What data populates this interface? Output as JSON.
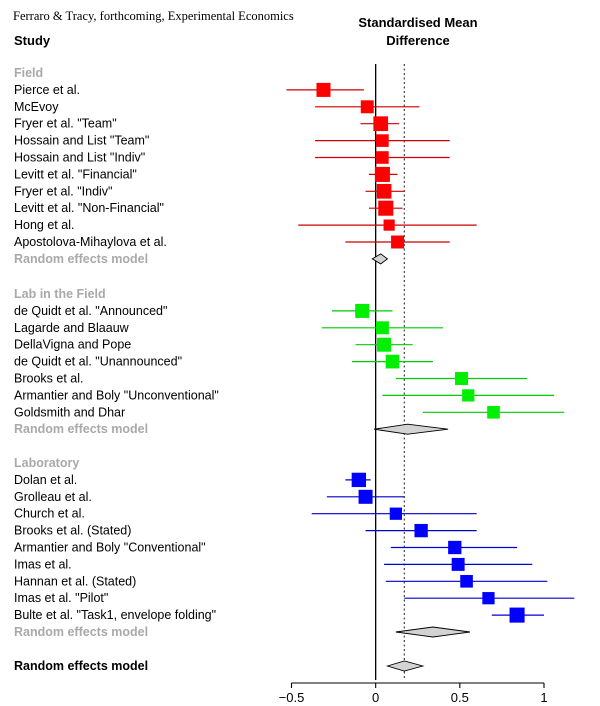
{
  "source_note": "Ferraro & Tracy, forthcoming, Experimental Economics",
  "column_headers": {
    "study": "Study",
    "effect_line1": "Standardised Mean",
    "effect_line2": "Difference"
  },
  "overall_label": "Random effects model",
  "chart_data": {
    "type": "forest",
    "xlim": [
      -0.5,
      1
    ],
    "xticks": [
      "−0.5",
      "0",
      "0.5",
      "1"
    ],
    "xtick_values": [
      -0.5,
      0,
      0.5,
      1
    ],
    "null_line": 0,
    "pooled_line": 0.17,
    "colors": {
      "Field": "#ff0000",
      "Lab in the Field": "#00ee00",
      "Laboratory": "#0000ff",
      "pooled_fill": "#d3d3d3"
    },
    "groups": [
      {
        "name": "Field",
        "color": "#ff0000",
        "line_color": "#cc0000",
        "studies": [
          {
            "label": "Pierce et al.",
            "est": -0.31,
            "lo": -0.53,
            "hi": -0.07,
            "weight": 1.0
          },
          {
            "label": "McEvoy",
            "est": -0.05,
            "lo": -0.36,
            "hi": 0.26,
            "weight": 0.85
          },
          {
            "label": "Fryer et al. \"Team\"",
            "est": 0.03,
            "lo": -0.09,
            "hi": 0.14,
            "weight": 1.1
          },
          {
            "label": "Hossain and List \"Team\"",
            "est": 0.04,
            "lo": -0.36,
            "hi": 0.44,
            "weight": 0.8
          },
          {
            "label": "Hossain and List \"Indiv\"",
            "est": 0.04,
            "lo": -0.36,
            "hi": 0.44,
            "weight": 0.8
          },
          {
            "label": "Levitt et al. \"Financial\"",
            "est": 0.04,
            "lo": -0.04,
            "hi": 0.13,
            "weight": 1.15
          },
          {
            "label": "Fryer et al. \"Indiv\"",
            "est": 0.05,
            "lo": -0.06,
            "hi": 0.17,
            "weight": 1.1
          },
          {
            "label": "Levitt et al. \"Non-Financial\"",
            "est": 0.06,
            "lo": -0.04,
            "hi": 0.16,
            "weight": 1.15
          },
          {
            "label": "Hong et al.",
            "est": 0.08,
            "lo": -0.46,
            "hi": 0.6,
            "weight": 0.6
          },
          {
            "label": "Apostolova-Mihaylova et al.",
            "est": 0.13,
            "lo": -0.18,
            "hi": 0.44,
            "weight": 0.85
          }
        ],
        "pooled": {
          "label": "Random effects model",
          "est": 0.03,
          "lo": -0.02,
          "hi": 0.07
        }
      },
      {
        "name": "Lab in the Field",
        "color": "#00ee00",
        "line_color": "#00cc00",
        "studies": [
          {
            "label": "de Quidt et al. \"Announced\"",
            "est": -0.08,
            "lo": -0.26,
            "hi": 0.1,
            "weight": 1.0
          },
          {
            "label": "Lagarde and Blaauw",
            "est": 0.04,
            "lo": -0.32,
            "hi": 0.4,
            "weight": 0.85
          },
          {
            "label": "DellaVigna and Pope",
            "est": 0.05,
            "lo": -0.12,
            "hi": 0.22,
            "weight": 1.0
          },
          {
            "label": "de Quidt et al. \"Unannounced\"",
            "est": 0.1,
            "lo": -0.14,
            "hi": 0.34,
            "weight": 0.95
          },
          {
            "label": "Brooks et al.",
            "est": 0.51,
            "lo": 0.12,
            "hi": 0.9,
            "weight": 0.85
          },
          {
            "label": "Armantier and Boly \"Unconventional\"",
            "est": 0.55,
            "lo": 0.04,
            "hi": 1.06,
            "weight": 0.75
          },
          {
            "label": "Goldsmith and Dhar",
            "est": 0.7,
            "lo": 0.28,
            "hi": 1.12,
            "weight": 0.8
          }
        ],
        "pooled": {
          "label": "Random effects model",
          "est": 0.19,
          "lo": -0.01,
          "hi": 0.43
        }
      },
      {
        "name": "Laboratory",
        "color": "#0000ff",
        "line_color": "#0000cc",
        "studies": [
          {
            "label": "Dolan et al.",
            "est": -0.1,
            "lo": -0.18,
            "hi": -0.03,
            "weight": 1.05
          },
          {
            "label": "Grolleau et al.",
            "est": -0.06,
            "lo": -0.29,
            "hi": 0.17,
            "weight": 1.0
          },
          {
            "label": "Church et al.",
            "est": 0.12,
            "lo": -0.38,
            "hi": 0.6,
            "weight": 0.75
          },
          {
            "label": "Brooks et al. (Stated)",
            "est": 0.27,
            "lo": -0.06,
            "hi": 0.6,
            "weight": 0.9
          },
          {
            "label": "Armantier and Boly \"Conventional\"",
            "est": 0.47,
            "lo": 0.09,
            "hi": 0.84,
            "weight": 0.9
          },
          {
            "label": "Imas et al.",
            "est": 0.49,
            "lo": 0.05,
            "hi": 0.93,
            "weight": 0.85
          },
          {
            "label": "Hannan et al. (Stated)",
            "est": 0.54,
            "lo": 0.06,
            "hi": 1.02,
            "weight": 0.8
          },
          {
            "label": "Imas et al. \"Pilot\"",
            "est": 0.67,
            "lo": 0.17,
            "hi": 1.18,
            "weight": 0.75
          },
          {
            "label": "Bulte et al. \"Task1, envelope folding\"",
            "est": 0.84,
            "lo": 0.69,
            "hi": 1.0,
            "weight": 1.15
          }
        ],
        "pooled": {
          "label": "Random effects model",
          "est": 0.34,
          "lo": 0.12,
          "hi": 0.56
        }
      }
    ],
    "overall": {
      "label": "Random effects model",
      "est": 0.17,
      "lo": 0.07,
      "hi": 0.28
    }
  }
}
